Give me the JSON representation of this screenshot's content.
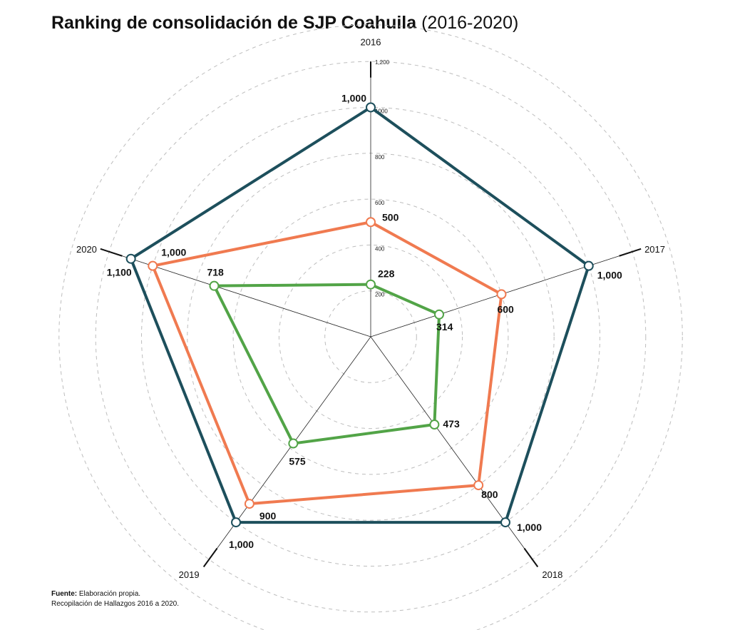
{
  "title": {
    "bold": "Ranking de consolidación de SJP Coahuila",
    "light": "(2016-2020)"
  },
  "source": {
    "label": "Fuente:",
    "line1": "Elaboración propia.",
    "line2": "Recopilación de Hallazgos 2016 a 2020."
  },
  "chart_data": {
    "type": "radar",
    "categories": [
      "2016",
      "2017",
      "2018",
      "2019",
      "2020"
    ],
    "rlim": [
      0,
      1200
    ],
    "ticks": [
      200,
      400,
      600,
      800,
      1000,
      1200
    ],
    "tick_labels": [
      "200",
      "400",
      "600",
      "800",
      "1000",
      "1,200"
    ],
    "grid": true,
    "series": [
      {
        "color": "#1d4f5c",
        "values": [
          1000,
          1000,
          1000,
          1000,
          1100
        ],
        "labels": [
          "1,000",
          "1,000",
          "1,000",
          "1,000",
          "1,100"
        ]
      },
      {
        "color": "#f07a50",
        "values": [
          500,
          600,
          800,
          900,
          1000
        ],
        "labels": [
          "500",
          "600",
          "800",
          "900",
          "1,000"
        ]
      },
      {
        "color": "#52a447",
        "values": [
          228,
          314,
          473,
          575,
          718
        ],
        "labels": [
          "228",
          "314",
          "473",
          "575",
          "718"
        ]
      }
    ]
  }
}
